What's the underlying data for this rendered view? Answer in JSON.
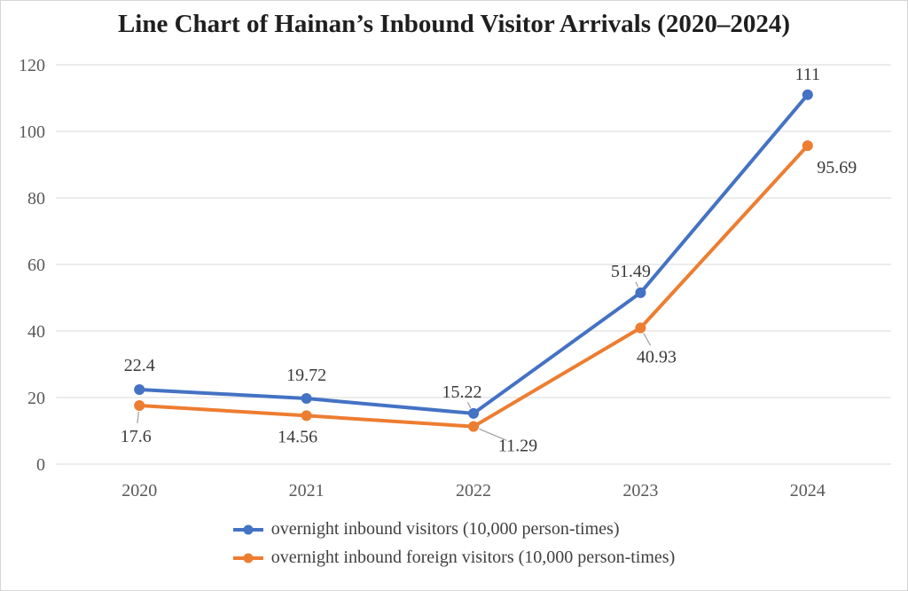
{
  "chart_data": {
    "type": "line",
    "title": "Line Chart of Hainan’s Inbound Visitor Arrivals (2020–2024)",
    "categories": [
      "2020",
      "2021",
      "2022",
      "2023",
      "2024"
    ],
    "series": [
      {
        "name": "overnight inbound visitors (10,000 person-times)",
        "color": "#4472C4",
        "values": [
          22.4,
          19.72,
          15.22,
          51.49,
          111
        ],
        "label_offsets": [
          [
            0,
            -28
          ],
          [
            0,
            -27
          ],
          [
            -13,
            -25
          ],
          [
            -11,
            -25
          ],
          [
            0,
            -24
          ]
        ],
        "label_leaders": [
          false,
          false,
          true,
          true,
          false
        ]
      },
      {
        "name": "overnight inbound foreign visitors (10,000 person-times)",
        "color": "#ED7D31",
        "values": [
          17.6,
          14.56,
          11.29,
          40.93,
          95.69
        ],
        "label_offsets": [
          [
            -4,
            34
          ],
          [
            -10,
            23
          ],
          [
            50,
            21
          ],
          [
            18,
            32
          ],
          [
            33,
            24
          ]
        ],
        "label_leaders": [
          true,
          false,
          true,
          true,
          false
        ]
      }
    ],
    "xlabel": "",
    "ylabel": "",
    "ylim": [
      0,
      120
    ],
    "yticks": [
      0,
      20,
      40,
      60,
      80,
      100,
      120
    ],
    "grid": true,
    "grid_color": "#d9d9d9",
    "leader_color": "#a6a6a6",
    "legend_position": "bottom",
    "marker": "circle"
  }
}
